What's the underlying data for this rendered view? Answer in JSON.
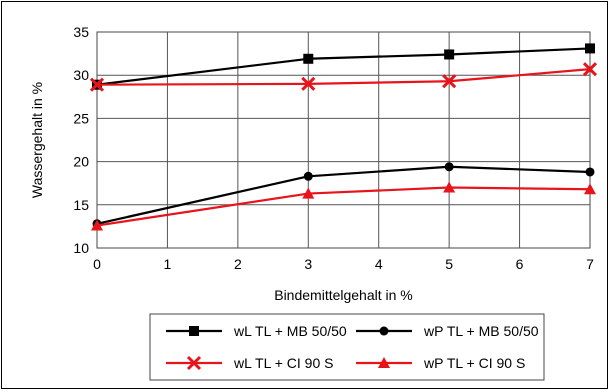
{
  "chart_data": {
    "type": "line",
    "title": "",
    "xlabel": "Bindemittelgehalt in %",
    "ylabel": "Wassergehalt in %",
    "xlim": [
      0,
      7
    ],
    "ylim": [
      10,
      35
    ],
    "xticks": [
      "0",
      "1",
      "2",
      "3",
      "4",
      "5",
      "6",
      "7"
    ],
    "yticks": [
      "10",
      "15",
      "20",
      "25",
      "30",
      "35"
    ],
    "grid": true,
    "legend_position": "bottom",
    "series": [
      {
        "name": "wL TL + MB 50/50",
        "color": "#000000",
        "marker": "square",
        "x": [
          0,
          3,
          5,
          7
        ],
        "y": [
          28.9,
          31.9,
          32.4,
          33.1
        ]
      },
      {
        "name": "wP TL + MB 50/50",
        "color": "#000000",
        "marker": "circle",
        "x": [
          0,
          3,
          5,
          7
        ],
        "y": [
          12.8,
          18.3,
          19.4,
          18.8
        ]
      },
      {
        "name": "wL TL + CI 90 S",
        "color": "#e8141c",
        "marker": "x",
        "x": [
          0,
          3,
          5,
          7
        ],
        "y": [
          28.9,
          29.0,
          29.3,
          30.7
        ]
      },
      {
        "name": "wP TL + CI 90 S",
        "color": "#e8141c",
        "marker": "triangle",
        "x": [
          0,
          3,
          5,
          7
        ],
        "y": [
          12.6,
          16.3,
          17.0,
          16.8
        ]
      }
    ]
  }
}
